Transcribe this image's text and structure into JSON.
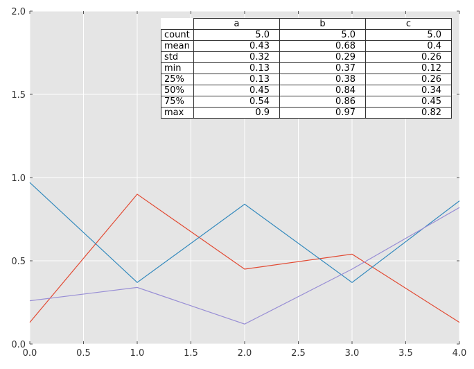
{
  "chart_data": {
    "type": "line",
    "x": [
      0,
      1,
      2,
      3,
      4
    ],
    "series": [
      {
        "name": "a",
        "color": "#E24A33",
        "values": [
          0.13,
          0.9,
          0.45,
          0.54,
          0.13
        ]
      },
      {
        "name": "b",
        "color": "#348ABD",
        "values": [
          0.97,
          0.37,
          0.84,
          0.37,
          0.86
        ]
      },
      {
        "name": "c",
        "color": "#988ED5",
        "values": [
          0.26,
          0.34,
          0.12,
          0.45,
          0.82
        ]
      }
    ],
    "xlim": [
      0,
      4
    ],
    "ylim": [
      0,
      2
    ],
    "xticks": [
      "0.0",
      "0.5",
      "1.0",
      "1.5",
      "2.0",
      "2.5",
      "3.0",
      "3.5",
      "4.0"
    ],
    "yticks": [
      "0.0",
      "0.5",
      "1.0",
      "1.5",
      "2.0"
    ],
    "grid": true,
    "background": "#E5E5E5",
    "title": "",
    "xlabel": "",
    "ylabel": ""
  },
  "table": {
    "columns": [
      "a",
      "b",
      "c"
    ],
    "rows": [
      {
        "label": "count",
        "values": [
          "5.0",
          "5.0",
          "5.0"
        ]
      },
      {
        "label": "mean",
        "values": [
          "0.43",
          "0.68",
          "0.4"
        ]
      },
      {
        "label": "std",
        "values": [
          "0.32",
          "0.29",
          "0.26"
        ]
      },
      {
        "label": "min",
        "values": [
          "0.13",
          "0.37",
          "0.12"
        ]
      },
      {
        "label": "25%",
        "values": [
          "0.13",
          "0.38",
          "0.26"
        ]
      },
      {
        "label": "50%",
        "values": [
          "0.45",
          "0.84",
          "0.34"
        ]
      },
      {
        "label": "75%",
        "values": [
          "0.54",
          "0.86",
          "0.45"
        ]
      },
      {
        "label": "max",
        "values": [
          "0.9",
          "0.97",
          "0.82"
        ]
      }
    ]
  }
}
